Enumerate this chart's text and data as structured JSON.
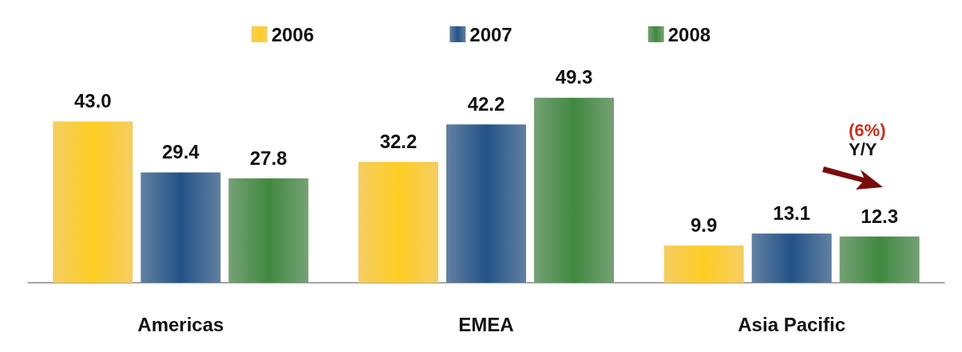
{
  "chart_data": {
    "type": "bar",
    "categories": [
      "Americas",
      "EMEA",
      "Asia Pacific"
    ],
    "series": [
      {
        "name": "2006",
        "color": "#f0b820",
        "values": [
          43.0,
          32.2,
          9.9
        ],
        "value_labels": [
          "43.0",
          "32.2",
          "9.9"
        ]
      },
      {
        "name": "2007",
        "color": "#1f4a7a",
        "values": [
          29.4,
          42.2,
          13.1
        ],
        "value_labels": [
          "29.4",
          "42.2",
          "13.1"
        ]
      },
      {
        "name": "2008",
        "color": "#3a7a3a",
        "values": [
          27.8,
          49.3,
          12.3
        ],
        "value_labels": [
          "27.8",
          "49.3",
          "12.3"
        ]
      }
    ],
    "legend": "top",
    "annotations": [
      "(6%)",
      "Y/Y"
    ]
  }
}
